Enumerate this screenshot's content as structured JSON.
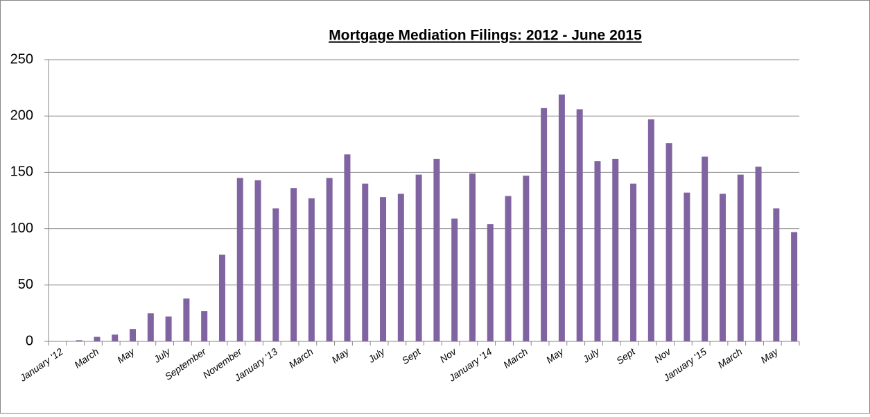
{
  "chart_data": {
    "type": "bar",
    "title": "Mortgage Mediation Filings: 2012 - June 2015",
    "categories": [
      "January '12",
      null,
      "March",
      null,
      "May",
      null,
      "July",
      null,
      "September",
      null,
      "November",
      null,
      "January '13",
      null,
      "March",
      null,
      "May",
      null,
      "July",
      null,
      "Sept",
      null,
      "Nov",
      null,
      "January '14",
      null,
      "March",
      null,
      "May",
      null,
      "July",
      null,
      "Sept",
      null,
      "Nov",
      null,
      "January '15",
      null,
      "March",
      null,
      "May",
      null
    ],
    "values": [
      0,
      1,
      4,
      6,
      11,
      25,
      22,
      38,
      27,
      77,
      145,
      143,
      118,
      136,
      127,
      145,
      166,
      140,
      128,
      131,
      148,
      162,
      109,
      149,
      104,
      129,
      147,
      207,
      219,
      206,
      160,
      162,
      140,
      197,
      176,
      132,
      164,
      131,
      148,
      155,
      118,
      97
    ],
    "color": "#8064a2",
    "ylim": [
      0,
      250
    ],
    "yticks": [
      0,
      50,
      100,
      150,
      200,
      250
    ],
    "grid": true
  }
}
